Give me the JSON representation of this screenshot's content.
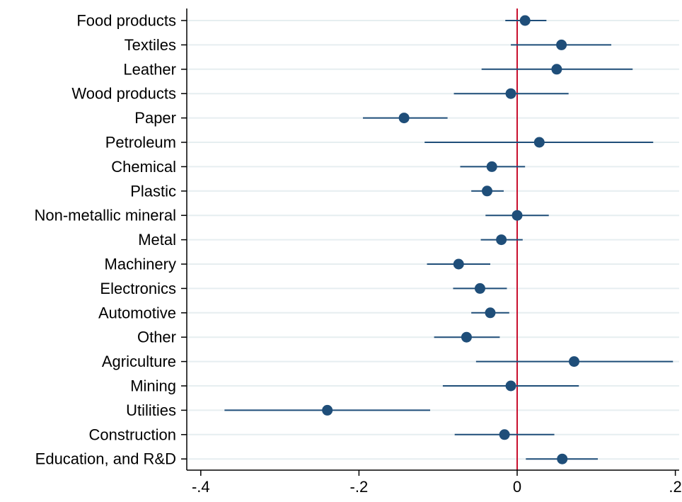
{
  "chart_data": {
    "type": "scatter",
    "orientation": "horizontal-coefficient-plot",
    "title": "",
    "xlabel": "",
    "ylabel": "",
    "xlim": [
      -0.4,
      0.2
    ],
    "x_ticks": [
      -0.4,
      -0.2,
      0,
      0.2
    ],
    "x_tick_labels": [
      "-.4",
      "-.2",
      "0",
      ".2"
    ],
    "reference_line_x": 0,
    "grid": "horizontal",
    "legend": "none",
    "categories": [
      "Food products",
      "Textiles",
      "Leather",
      "Wood products",
      "Paper",
      "Petroleum",
      "Chemical",
      "Plastic",
      "Non-metallic mineral",
      "Metal",
      "Machinery",
      "Electronics",
      "Automotive",
      "Other",
      "Agriculture",
      "Mining",
      "Utilities",
      "Construction",
      "Education, and R&D"
    ],
    "estimates": [
      0.01,
      0.056,
      0.05,
      -0.008,
      -0.143,
      0.028,
      -0.032,
      -0.038,
      0.0,
      -0.02,
      -0.074,
      -0.047,
      -0.034,
      -0.064,
      0.072,
      -0.008,
      -0.24,
      -0.016,
      0.057
    ],
    "ci_low": [
      -0.015,
      -0.008,
      -0.045,
      -0.08,
      -0.195,
      -0.117,
      -0.072,
      -0.058,
      -0.04,
      -0.046,
      -0.114,
      -0.081,
      -0.058,
      -0.105,
      -0.052,
      -0.094,
      -0.37,
      -0.079,
      0.011
    ],
    "ci_high": [
      0.037,
      0.119,
      0.146,
      0.065,
      -0.088,
      0.172,
      0.01,
      -0.017,
      0.04,
      0.007,
      -0.034,
      -0.013,
      -0.01,
      -0.022,
      0.197,
      0.078,
      -0.11,
      0.047,
      0.102
    ]
  },
  "colors": {
    "marker": "#1f4e79",
    "ci_line": "#1f4e79",
    "reference_line": "#c8102e",
    "grid": "#e6eef0",
    "axis": "#000000"
  }
}
